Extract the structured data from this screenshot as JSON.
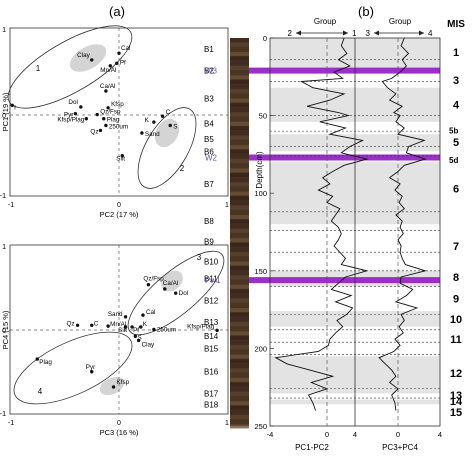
{
  "panel_labels": [
    "(a)",
    "(b)"
  ],
  "chart_data": [
    {
      "type": "scatter",
      "id": "pc1-pc2",
      "xlabel": "PC2 (17 %)",
      "ylabel": "PC1 (19 %)",
      "xlim": [
        -1,
        1
      ],
      "ylim": [
        -1,
        1
      ],
      "xticks": [
        -1,
        0,
        1
      ],
      "yticks": [
        -1,
        0,
        1
      ],
      "groups": [
        "1",
        "2"
      ],
      "points": [
        {
          "label": "Clay",
          "x": -0.25,
          "y": 0.62
        },
        {
          "label": "Cal",
          "x": 0.0,
          "y": 0.7
        },
        {
          "label": "Pf",
          "x": -0.02,
          "y": 0.58
        },
        {
          "label": "Mn/Al",
          "x": -0.08,
          "y": 0.55
        },
        {
          "label": "I",
          "x": -0.98,
          "y": 0.08
        },
        {
          "label": "Ca/Al",
          "x": -0.12,
          "y": 0.25
        },
        {
          "label": "Dol",
          "x": -0.35,
          "y": 0.06
        },
        {
          "label": "Kfsp",
          "x": -0.1,
          "y": 0.05
        },
        {
          "label": "Pyr",
          "x": -0.4,
          "y": -0.02
        },
        {
          "label": "Qz/Fsp",
          "x": -0.2,
          "y": -0.03
        },
        {
          "label": "Kfsp/Plag",
          "x": -0.3,
          "y": -0.08
        },
        {
          "label": "Plag",
          "x": -0.14,
          "y": -0.08
        },
        {
          "label": "250um",
          "x": -0.12,
          "y": -0.16
        },
        {
          "label": "Qz",
          "x": -0.17,
          "y": -0.22
        },
        {
          "label": "C",
          "x": 0.4,
          "y": -0.05
        },
        {
          "label": "K",
          "x": 0.32,
          "y": -0.12
        },
        {
          "label": "S",
          "x": 0.47,
          "y": -0.16
        },
        {
          "label": "Sand",
          "x": 0.21,
          "y": -0.25
        },
        {
          "label": "Silt",
          "x": 0.03,
          "y": -0.52
        }
      ]
    },
    {
      "type": "scatter",
      "id": "pc4-pc3",
      "xlabel": "PC3 (16 %)",
      "ylabel": "PC4 (15 %)",
      "xlim": [
        -1,
        1
      ],
      "ylim": [
        -1,
        1
      ],
      "xticks": [
        -1,
        0,
        1
      ],
      "yticks": [
        -1,
        0,
        1
      ],
      "groups": [
        "3",
        "4"
      ],
      "points": [
        {
          "label": "Qz/Fsp",
          "x": 0.27,
          "y": 0.53
        },
        {
          "label": "Ca/Al",
          "x": 0.42,
          "y": 0.48
        },
        {
          "label": "Dol",
          "x": 0.52,
          "y": 0.43
        },
        {
          "label": "Sand",
          "x": 0.06,
          "y": 0.15
        },
        {
          "label": "Cal",
          "x": 0.22,
          "y": 0.17
        },
        {
          "label": "Qz",
          "x": -0.38,
          "y": 0.05
        },
        {
          "label": "C",
          "x": -0.25,
          "y": 0.05
        },
        {
          "label": "Mn/Al",
          "x": -0.1,
          "y": 0.04
        },
        {
          "label": "Silt",
          "x": 0.06,
          "y": 0.03
        },
        {
          "label": "Pf",
          "x": 0.12,
          "y": 0.03
        },
        {
          "label": "K",
          "x": 0.2,
          "y": 0.03
        },
        {
          "label": "250um",
          "x": 0.32,
          "y": 0.0
        },
        {
          "label": "Kfsp/Plag",
          "x": 0.9,
          "y": -0.01
        },
        {
          "label": "S",
          "x": 0.15,
          "y": -0.08
        },
        {
          "label": "Clay",
          "x": 0.18,
          "y": -0.13
        },
        {
          "label": "Plag",
          "x": -0.75,
          "y": -0.35
        },
        {
          "label": "Pyr",
          "x": -0.25,
          "y": -0.5
        },
        {
          "label": "Kfsp",
          "x": -0.05,
          "y": -0.68
        }
      ]
    },
    {
      "type": "line",
      "id": "depth-profiles",
      "ylabel": "Depth(cm)",
      "ylim": [
        0,
        250
      ],
      "yticks": [
        0,
        50,
        100,
        150,
        200,
        250
      ],
      "group_header": "Group",
      "track1": {
        "xlabel": "PC1-PC2",
        "xticks": [
          -4,
          0,
          4
        ],
        "arrow_left": "2",
        "arrow_right": "1",
        "depth": [
          0,
          5,
          10,
          14,
          18,
          22,
          26,
          28,
          32,
          36,
          40,
          44,
          48,
          50,
          54,
          58,
          62,
          66,
          70,
          74,
          78,
          82,
          86,
          90,
          94,
          98,
          102,
          106,
          110,
          114,
          118,
          122,
          126,
          130,
          134,
          138,
          142,
          146,
          150,
          154,
          158,
          162,
          166,
          170,
          174,
          178,
          182,
          186,
          190,
          194,
          198,
          202,
          206,
          210,
          214,
          218,
          222,
          226,
          230,
          235,
          240
        ],
        "values": [
          1.2,
          1.0,
          1.4,
          0.8,
          1.6,
          0.5,
          1.1,
          -1.8,
          -1.0,
          1.2,
          0.2,
          -1.4,
          0.8,
          1.5,
          -0.5,
          1.3,
          0.2,
          2.5,
          1.6,
          1.0,
          2.8,
          1.2,
          0.4,
          -0.3,
          0.2,
          -0.6,
          0.4,
          0.0,
          0.9,
          0.6,
          0.3,
          0.8,
          1.0,
          0.8,
          0.5,
          0.9,
          1.3,
          1.0,
          2.8,
          1.3,
          0.8,
          0.3,
          1.7,
          0.6,
          1.8,
          1.4,
          0.7,
          1.1,
          0.6,
          0.2,
          0.1,
          -0.6,
          -3.6,
          -2.8,
          -1.2,
          0.4,
          -1.1,
          0.0,
          -1.3,
          -1.0,
          -0.8
        ]
      },
      "track2": {
        "xlabel": "PC3+PC4",
        "xticks": [
          -4,
          0,
          4
        ],
        "arrow_left": "3",
        "arrow_right": "4",
        "depth": [
          0,
          5,
          10,
          14,
          18,
          22,
          26,
          28,
          32,
          36,
          40,
          44,
          48,
          50,
          54,
          58,
          62,
          66,
          70,
          74,
          78,
          82,
          86,
          90,
          94,
          98,
          102,
          106,
          110,
          114,
          118,
          122,
          126,
          130,
          134,
          138,
          142,
          146,
          150,
          154,
          158,
          162,
          166,
          170,
          174,
          178,
          182,
          186,
          190,
          194,
          198,
          202,
          206,
          210,
          214,
          218,
          222,
          226,
          230,
          235,
          240
        ],
        "values": [
          0.6,
          0.3,
          1.0,
          0.4,
          0.8,
          0.2,
          -0.6,
          -1.5,
          -1.0,
          -0.2,
          -0.8,
          0.4,
          -0.4,
          0.2,
          -0.2,
          0.6,
          0.0,
          2.5,
          1.0,
          0.8,
          2.6,
          0.6,
          0.0,
          -0.8,
          0.2,
          -0.3,
          0.4,
          0.1,
          0.6,
          -0.2,
          0.4,
          0.2,
          0.5,
          0.0,
          0.3,
          0.2,
          0.4,
          0.7,
          2.6,
          0.3,
          0.2,
          1.4,
          0.8,
          -0.2,
          1.8,
          0.3,
          0.6,
          0.1,
          0.5,
          -0.3,
          0.2,
          -0.4,
          -1.8,
          -1.2,
          -0.6,
          -0.2,
          -0.8,
          0.0,
          -0.6,
          -0.3,
          -0.2
        ]
      },
      "units": [
        {
          "label": "B1",
          "top": 0,
          "bottom": 14
        },
        {
          "label": "B2",
          "top": 14,
          "bottom": 28
        },
        {
          "label": "B3",
          "top": 28,
          "bottom": 50
        },
        {
          "label": "B4",
          "top": 50,
          "bottom": 60
        },
        {
          "label": "B5",
          "top": 60,
          "bottom": 70
        },
        {
          "label": "B6",
          "top": 70,
          "bottom": 76
        },
        {
          "label": "B7",
          "top": 76,
          "bottom": 112
        },
        {
          "label": "B8",
          "top": 112,
          "bottom": 124
        },
        {
          "label": "B9",
          "top": 124,
          "bottom": 138
        },
        {
          "label": "B10",
          "top": 138,
          "bottom": 150
        },
        {
          "label": "B11",
          "top": 150,
          "bottom": 160
        },
        {
          "label": "B12",
          "top": 160,
          "bottom": 178
        },
        {
          "label": "B13",
          "top": 178,
          "bottom": 188
        },
        {
          "label": "B14",
          "top": 188,
          "bottom": 196
        },
        {
          "label": "B15",
          "top": 196,
          "bottom": 204
        },
        {
          "label": "B16",
          "top": 204,
          "bottom": 226
        },
        {
          "label": "B17",
          "top": 226,
          "bottom": 232
        },
        {
          "label": "B18",
          "top": 232,
          "bottom": 240
        }
      ],
      "tephra": [
        {
          "label": "W3",
          "depth": 21
        },
        {
          "label": "W2",
          "depth": 77
        },
        {
          "label": "Pw1",
          "depth": 156
        }
      ],
      "mis_header": "MIS",
      "mis": [
        {
          "label": "1",
          "top": 0,
          "bottom": 21,
          "y": 9
        },
        {
          "label": "3",
          "top": 21,
          "bottom": 32,
          "y": 27
        },
        {
          "label": "4",
          "top": 32,
          "bottom": 54,
          "y": 43
        },
        {
          "label": "5b",
          "top": 54,
          "bottom": 62,
          "y": 59
        },
        {
          "label": "5",
          "top": 62,
          "bottom": 73,
          "y": 67
        },
        {
          "label": "5d",
          "top": 73,
          "bottom": 80,
          "y": 78
        },
        {
          "label": "6",
          "top": 80,
          "bottom": 120,
          "y": 97
        },
        {
          "label": "7",
          "top": 120,
          "bottom": 150,
          "y": 134
        },
        {
          "label": "8",
          "top": 150,
          "bottom": 160,
          "y": 154
        },
        {
          "label": "9",
          "top": 160,
          "bottom": 176,
          "y": 168
        },
        {
          "label": "10",
          "top": 176,
          "bottom": 186,
          "y": 181
        },
        {
          "label": "11",
          "top": 186,
          "bottom": 205,
          "y": 194
        },
        {
          "label": "12",
          "top": 205,
          "bottom": 229,
          "y": 216
        },
        {
          "label": "13",
          "top": 229,
          "bottom": 233,
          "y": 230
        },
        {
          "label": "14",
          "top": 233,
          "bottom": 236,
          "y": 234
        },
        {
          "label": "15",
          "top": 236,
          "bottom": 244,
          "y": 241
        }
      ],
      "colors": {
        "tephra": "#9b2fc7",
        "shade": "#e3e3e3",
        "core": "#4a3424"
      }
    }
  ]
}
